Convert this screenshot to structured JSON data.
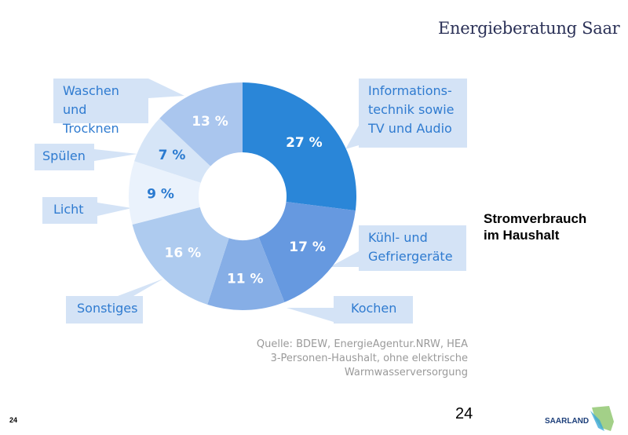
{
  "header": {
    "brand": "Energieberatung Saar"
  },
  "chart_data": {
    "type": "pie",
    "donut": true,
    "title": "",
    "slices": [
      {
        "label": "Informations-\ntechnik sowie\nTV und Audio",
        "value": 27,
        "value_label": "27 %",
        "color": "#2a86d8",
        "text_color": "#ffffff"
      },
      {
        "label": "Kühl- und\nGefriergeräte",
        "value": 17,
        "value_label": "17 %",
        "color": "#6699e0",
        "text_color": "#ffffff"
      },
      {
        "label": "Kochen",
        "value": 11,
        "value_label": "11 %",
        "color": "#86aee6",
        "text_color": "#ffffff"
      },
      {
        "label": "Sonstiges",
        "value": 16,
        "value_label": "16 %",
        "color": "#aecbef",
        "text_color": "#ffffff"
      },
      {
        "label": "Licht",
        "value": 9,
        "value_label": "9 %",
        "color": "#eaf2fc",
        "text_color": "#2a7ad0"
      },
      {
        "label": "Spülen",
        "value": 7,
        "value_label": "7 %",
        "color": "#d6e5f7",
        "text_color": "#2a7ad0"
      },
      {
        "label": "Waschen\nund Trocknen",
        "value": 13,
        "value_label": "13 %",
        "color": "#aac6ee",
        "text_color": "#ffffff"
      }
    ]
  },
  "source": {
    "line1": "Quelle: BDEW, EnergieAgentur.NRW, HEA",
    "line2": "3-Personen-Haushalt, ohne elektrische Warmwasserversorgung"
  },
  "side_title": {
    "line1": "Stromverbrauch",
    "line2": "im Haushalt"
  },
  "footer": {
    "page_small": "24",
    "page": "24",
    "logo": "SAARLAND"
  }
}
